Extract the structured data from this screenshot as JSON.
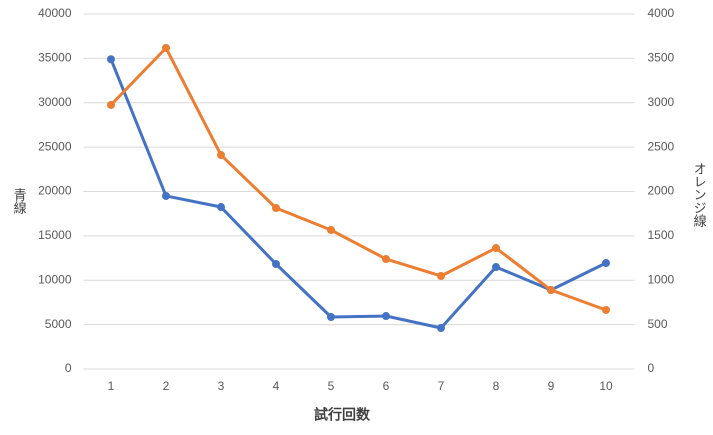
{
  "chart_data": {
    "type": "line",
    "x_label": "試行回数",
    "y_label": "青線",
    "y2_label": "オレンジ線",
    "categories": [
      "1",
      "2",
      "3",
      "4",
      "5",
      "6",
      "7",
      "8",
      "9",
      "10"
    ],
    "series": [
      {
        "name": "青線",
        "color": "#4472c4",
        "values": [
          34900,
          19500,
          18250,
          11830,
          5860,
          5970,
          4620,
          11490,
          8900,
          11940
        ]
      },
      {
        "name": "オレンジ線",
        "color": "#ed7d31",
        "axis": "y2",
        "values": [
          2975,
          3617,
          2411,
          1814,
          1566,
          1239,
          1048,
          1363,
          890,
          665
        ]
      }
    ],
    "ylim": [
      0,
      40000
    ],
    "yticks": [
      0,
      5000,
      10000,
      15000,
      20000,
      25000,
      30000,
      35000,
      40000
    ],
    "y2lim": [
      0,
      4000
    ],
    "y2ticks": [
      0,
      500,
      1000,
      1500,
      2000,
      2500,
      3000,
      3500,
      4000
    ],
    "grid": true
  }
}
